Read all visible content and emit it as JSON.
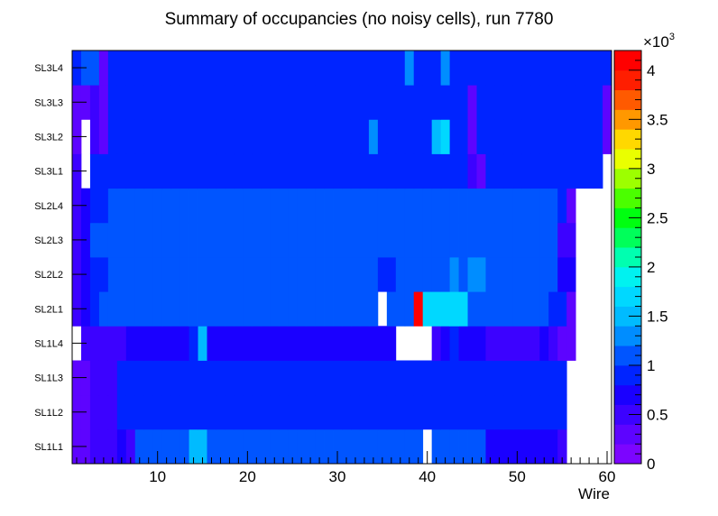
{
  "chart_data": {
    "type": "heatmap",
    "title": "Summary of occupancies (no noisy cells), run 7780",
    "xlabel": "Wire",
    "ylabel": "",
    "xlim": [
      0.5,
      60.5
    ],
    "x_ticks": [
      "10",
      "20",
      "30",
      "40",
      "50",
      "60"
    ],
    "rows": [
      "SL1L1",
      "SL1L2",
      "SL1L3",
      "SL1L4",
      "SL2L1",
      "SL2L2",
      "SL2L3",
      "SL2L4",
      "SL3L1",
      "SL3L2",
      "SL3L3",
      "SL3L4"
    ],
    "z_range": [
      0,
      4200
    ],
    "z_ticks": [
      "0",
      "0.5",
      "1",
      "1.5",
      "2",
      "2.5",
      "3",
      "3.5",
      "4"
    ],
    "z_multiplier": "×10",
    "z_multiplier_exp": "3",
    "values": [
      [
        340,
        340,
        500,
        500,
        500,
        610,
        500,
        1120,
        1120,
        1120,
        1120,
        1120,
        1120,
        1450,
        1450,
        1120,
        1120,
        1120,
        1120,
        1120,
        1120,
        1120,
        1120,
        1120,
        1120,
        1120,
        1120,
        1120,
        1120,
        1120,
        1120,
        1120,
        1120,
        1120,
        1120,
        1120,
        1120,
        1120,
        1120,
        null,
        1120,
        1120,
        1120,
        1120,
        1120,
        1120,
        610,
        610,
        610,
        610,
        610,
        610,
        610,
        610,
        500,
        null,
        null,
        null,
        null,
        null
      ],
      [
        340,
        340,
        500,
        500,
        500,
        830,
        830,
        830,
        830,
        830,
        830,
        830,
        830,
        830,
        830,
        830,
        830,
        830,
        830,
        830,
        830,
        830,
        830,
        830,
        830,
        830,
        830,
        830,
        830,
        830,
        830,
        830,
        830,
        940,
        940,
        830,
        830,
        830,
        830,
        830,
        830,
        830,
        830,
        830,
        830,
        830,
        830,
        830,
        830,
        830,
        830,
        830,
        830,
        830,
        830,
        null,
        null,
        null,
        null,
        null
      ],
      [
        340,
        340,
        500,
        500,
        500,
        830,
        830,
        830,
        830,
        830,
        830,
        830,
        830,
        830,
        830,
        830,
        830,
        830,
        830,
        830,
        830,
        830,
        830,
        830,
        830,
        830,
        830,
        940,
        830,
        830,
        830,
        830,
        830,
        830,
        830,
        830,
        830,
        830,
        830,
        830,
        830,
        830,
        830,
        830,
        830,
        830,
        830,
        830,
        830,
        830,
        830,
        830,
        830,
        830,
        830,
        null,
        null,
        null,
        null,
        null
      ],
      [
        null,
        500,
        500,
        500,
        500,
        500,
        610,
        610,
        610,
        610,
        610,
        610,
        610,
        940,
        1450,
        610,
        610,
        610,
        610,
        610,
        610,
        610,
        610,
        610,
        610,
        610,
        610,
        610,
        610,
        610,
        610,
        610,
        610,
        610,
        610,
        610,
        null,
        null,
        null,
        null,
        500,
        610,
        830,
        610,
        610,
        610,
        500,
        500,
        500,
        500,
        500,
        500,
        610,
        500,
        390,
        390,
        null,
        null,
        null,
        null
      ],
      [
        500,
        610,
        940,
        1120,
        1120,
        1120,
        1120,
        1120,
        1120,
        1120,
        1120,
        1120,
        1120,
        1120,
        1120,
        1120,
        1120,
        1120,
        1120,
        1120,
        1120,
        1120,
        1120,
        1120,
        1120,
        1120,
        1120,
        1120,
        1120,
        1120,
        1120,
        1120,
        1120,
        1120,
        null,
        1120,
        1120,
        1120,
        4100,
        1610,
        1610,
        1610,
        1610,
        1610,
        1120,
        1120,
        1120,
        1120,
        1120,
        1120,
        1120,
        1120,
        1120,
        940,
        940,
        390,
        null,
        null,
        null,
        null
      ],
      [
        500,
        610,
        940,
        940,
        1120,
        1120,
        1120,
        1120,
        1120,
        1120,
        1120,
        1120,
        1120,
        1120,
        1120,
        1120,
        1120,
        1120,
        1120,
        1120,
        1120,
        1120,
        1120,
        1120,
        1120,
        1120,
        1120,
        1120,
        1120,
        1120,
        1120,
        1120,
        1120,
        1120,
        940,
        940,
        1120,
        1120,
        1120,
        1120,
        1120,
        1120,
        1280,
        1120,
        1280,
        1280,
        1120,
        1120,
        1120,
        1120,
        1120,
        1120,
        1120,
        1120,
        610,
        610,
        null,
        null,
        null,
        null
      ],
      [
        500,
        610,
        1120,
        1120,
        1120,
        1120,
        1120,
        1120,
        1120,
        1120,
        1120,
        1120,
        1120,
        1120,
        1120,
        1120,
        1120,
        1120,
        1120,
        1120,
        1120,
        1120,
        1120,
        1120,
        1120,
        1120,
        1120,
        1120,
        1120,
        1120,
        1120,
        1120,
        1120,
        1120,
        1120,
        1120,
        1120,
        1120,
        1120,
        1120,
        1120,
        1120,
        1120,
        1120,
        1120,
        1120,
        1120,
        1120,
        1120,
        1120,
        1120,
        1120,
        1120,
        1120,
        500,
        500,
        null,
        null,
        null,
        null
      ],
      [
        500,
        610,
        940,
        940,
        1120,
        1120,
        1120,
        1120,
        1120,
        1120,
        1120,
        1120,
        1120,
        1120,
        1120,
        1120,
        1120,
        1120,
        1120,
        1120,
        1120,
        1120,
        1120,
        1120,
        1120,
        1120,
        1120,
        1120,
        1120,
        1120,
        1120,
        1120,
        1120,
        1120,
        1120,
        1120,
        1120,
        1120,
        1120,
        1120,
        1120,
        1120,
        1120,
        1120,
        1120,
        1120,
        1120,
        1120,
        1120,
        1120,
        1120,
        1120,
        1120,
        1120,
        830,
        390,
        null,
        null,
        null,
        null
      ],
      [
        500,
        null,
        830,
        830,
        940,
        940,
        940,
        940,
        940,
        940,
        940,
        940,
        940,
        940,
        940,
        940,
        940,
        940,
        940,
        940,
        940,
        940,
        940,
        940,
        940,
        940,
        940,
        940,
        940,
        940,
        940,
        940,
        940,
        940,
        940,
        940,
        940,
        940,
        940,
        940,
        940,
        940,
        940,
        940,
        500,
        390,
        830,
        830,
        830,
        830,
        830,
        830,
        830,
        830,
        830,
        830,
        830,
        830,
        830,
        null
      ],
      [
        340,
        null,
        500,
        390,
        940,
        940,
        940,
        940,
        940,
        940,
        940,
        940,
        940,
        940,
        940,
        940,
        940,
        940,
        940,
        940,
        940,
        940,
        940,
        940,
        940,
        940,
        940,
        940,
        940,
        940,
        940,
        940,
        940,
        1280,
        940,
        940,
        940,
        940,
        940,
        940,
        1450,
        1610,
        940,
        940,
        390,
        940,
        940,
        940,
        940,
        940,
        940,
        940,
        940,
        940,
        940,
        940,
        940,
        940,
        940,
        340
      ],
      [
        340,
        340,
        500,
        390,
        830,
        830,
        830,
        830,
        830,
        830,
        830,
        830,
        830,
        830,
        830,
        830,
        830,
        830,
        830,
        830,
        830,
        830,
        830,
        830,
        830,
        830,
        830,
        830,
        830,
        830,
        830,
        830,
        830,
        830,
        830,
        830,
        830,
        830,
        830,
        830,
        830,
        830,
        830,
        830,
        390,
        830,
        830,
        830,
        830,
        830,
        830,
        830,
        830,
        830,
        830,
        830,
        830,
        830,
        830,
        340
      ],
      [
        830,
        1120,
        1120,
        390,
        830,
        830,
        830,
        830,
        830,
        830,
        830,
        830,
        830,
        830,
        830,
        830,
        830,
        830,
        830,
        830,
        830,
        830,
        830,
        830,
        830,
        830,
        830,
        830,
        830,
        830,
        830,
        830,
        830,
        830,
        830,
        830,
        830,
        1280,
        830,
        830,
        940,
        1280,
        830,
        830,
        830,
        940,
        940,
        940,
        940,
        940,
        940,
        940,
        940,
        940,
        940,
        940,
        940,
        940,
        940,
        830
      ]
    ],
    "grid": "off",
    "colorbar": "right"
  }
}
